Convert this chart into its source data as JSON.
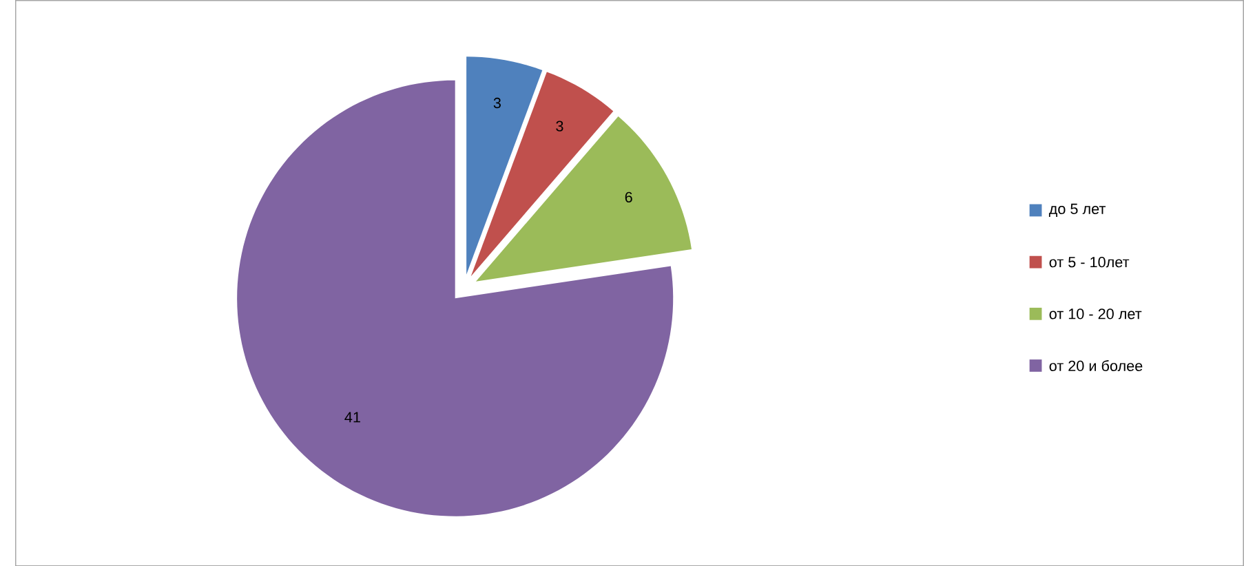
{
  "chart_data": {
    "type": "pie",
    "categories": [
      "до 5 лет",
      "от 5 - 10лет",
      "от 10 -  20 лет",
      "от 20 и более"
    ],
    "values": [
      3,
      3,
      6,
      41
    ],
    "colors": [
      "#4f81bd",
      "#c0504d",
      "#9bbb59",
      "#8064a2"
    ],
    "data_labels": true,
    "legend": "right"
  }
}
